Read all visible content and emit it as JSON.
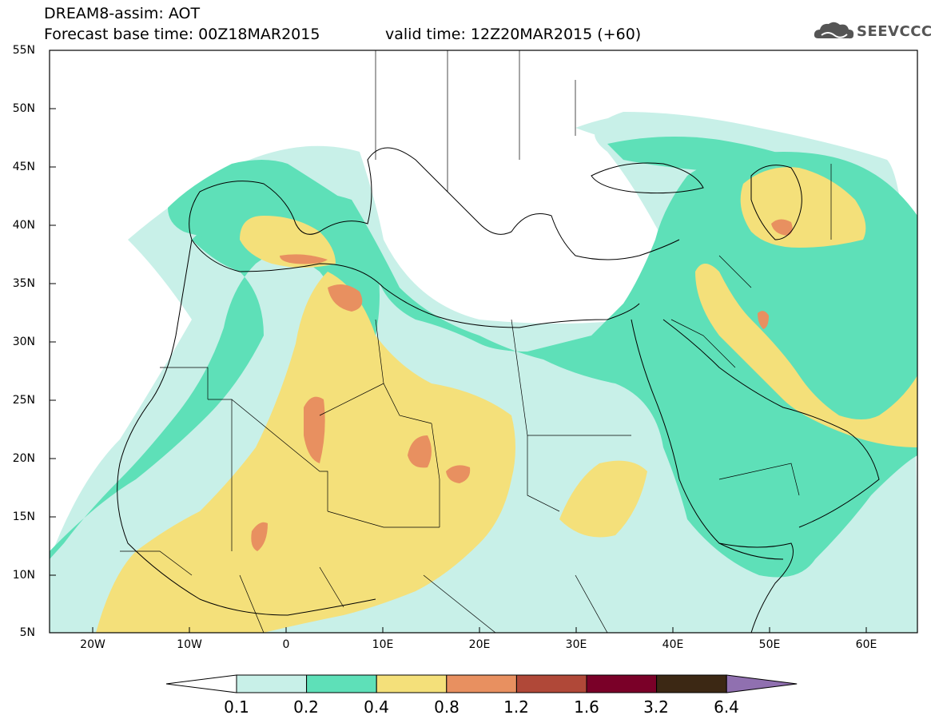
{
  "header": {
    "title_line1": "DREAM8-assim: AOT",
    "title_line2": "Forecast base time: 00Z18MAR2015",
    "valid_time": "valid time: 12Z20MAR2015 (+60)",
    "logo_text": "SEEVCCC"
  },
  "axes": {
    "lat_ticks": [
      "55N",
      "50N",
      "45N",
      "40N",
      "35N",
      "30N",
      "25N",
      "20N",
      "15N",
      "10N",
      "5N"
    ],
    "lon_ticks": [
      "20W",
      "10W",
      "0",
      "10E",
      "20E",
      "30E",
      "40E",
      "50E",
      "60E"
    ]
  },
  "colorbar": {
    "labels": [
      "0.1",
      "0.2",
      "0.4",
      "0.8",
      "1.2",
      "1.6",
      "3.2",
      "6.4"
    ],
    "colors": [
      "#c8f0e8",
      "#5ee0b8",
      "#f4e07a",
      "#e89060",
      "#b04838",
      "#7a0028",
      "#3c2814",
      "#9070b0"
    ]
  },
  "map_colors": {
    "ocean": "#ffffff",
    "level_0_1": "#c8f0e8",
    "level_0_2": "#5ee0b8",
    "level_0_4": "#f4e07a",
    "level_0_8": "#e89060",
    "border": "#000000"
  },
  "chart_data": {
    "type": "heatmap",
    "title": "DREAM8-assim: AOT",
    "xlim": [
      -25,
      65
    ],
    "ylim": [
      5,
      55
    ],
    "x_ticks": [
      "20W",
      "10W",
      "0",
      "10E",
      "20E",
      "30E",
      "40E",
      "50E",
      "60E"
    ],
    "y_ticks": [
      "55N",
      "50N",
      "45N",
      "40N",
      "35N",
      "30N",
      "25N",
      "20N",
      "15N",
      "10N",
      "5N"
    ],
    "levels": [
      0.1,
      0.2,
      0.4,
      0.8,
      1.2,
      1.6,
      3.2,
      6.4
    ]
  }
}
